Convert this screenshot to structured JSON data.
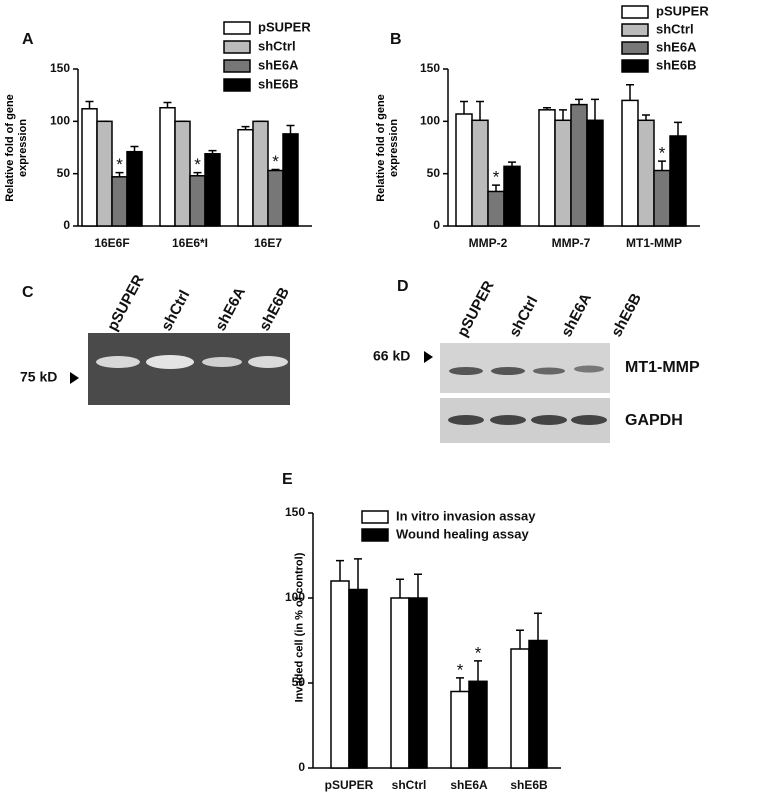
{
  "chart_data": [
    {
      "type": "bar",
      "panel": "A",
      "ylabel": "Relative fold of gene expression",
      "categories": [
        "16E6F",
        "16E6*I",
        "16E7"
      ],
      "series": [
        {
          "name": "pSUPER",
          "color": "#ffffff",
          "values": [
            112,
            113,
            92
          ],
          "errors": [
            7,
            5,
            3
          ]
        },
        {
          "name": "shCtrl",
          "color": "#bbbbbb",
          "values": [
            100,
            100,
            100
          ],
          "errors": [
            0,
            0,
            0
          ]
        },
        {
          "name": "shE6A",
          "color": "#777777",
          "values": [
            47,
            48,
            53
          ],
          "errors": [
            4,
            3,
            1
          ],
          "labels": [
            "*",
            "*",
            "*"
          ]
        },
        {
          "name": "shE6B",
          "color": "#000000",
          "values": [
            71,
            69,
            88
          ],
          "errors": [
            5,
            3,
            8
          ]
        }
      ],
      "ylim": [
        0,
        150
      ],
      "yticks": [
        0,
        50,
        100,
        150
      ]
    },
    {
      "type": "bar",
      "panel": "B",
      "ylabel": "Relative fold of gene expression",
      "categories": [
        "MMP-2",
        "MMP-7",
        "MT1-MMP"
      ],
      "series": [
        {
          "name": "pSUPER",
          "color": "#ffffff",
          "values": [
            107,
            111,
            120
          ],
          "errors": [
            12,
            2,
            15
          ]
        },
        {
          "name": "shCtrl",
          "color": "#bbbbbb",
          "values": [
            101,
            101,
            101
          ],
          "errors": [
            18,
            10,
            5
          ]
        },
        {
          "name": "shE6A",
          "color": "#777777",
          "values": [
            33,
            116,
            53
          ],
          "errors": [
            6,
            5,
            9
          ],
          "labels": [
            "*",
            null,
            "*"
          ]
        },
        {
          "name": "shE6B",
          "color": "#000000",
          "values": [
            57,
            101,
            86
          ],
          "errors": [
            4,
            20,
            13
          ]
        }
      ],
      "ylim": [
        0,
        150
      ],
      "yticks": [
        0,
        50,
        100,
        150
      ]
    },
    {
      "type": "bar",
      "panel": "E",
      "ylabel": "Invaded cell (in % of control)",
      "categories": [
        "pSUPER",
        "shCtrl",
        "shE6A",
        "shE6B"
      ],
      "series": [
        {
          "name": "In vitro invasion assay",
          "color": "#ffffff",
          "values": [
            110,
            100,
            45,
            70
          ],
          "errors": [
            12,
            11,
            8,
            11
          ],
          "labels": [
            null,
            null,
            "*",
            null
          ]
        },
        {
          "name": "Wound healing assay",
          "color": "#000000",
          "values": [
            105,
            100,
            51,
            75
          ],
          "errors": [
            18,
            14,
            12,
            16
          ],
          "labels": [
            null,
            null,
            "*",
            null
          ]
        }
      ],
      "ylim": [
        0,
        150
      ],
      "yticks": [
        0,
        50,
        100,
        150
      ]
    }
  ],
  "blots": [
    {
      "panel": "C",
      "lanes": [
        "pSUPER",
        "shCtrl",
        "shE6A",
        "shE6B"
      ],
      "marker": "75 kD"
    },
    {
      "panel": "D",
      "lanes": [
        "pSUPER",
        "shCtrl",
        "shE6A",
        "shE6B"
      ],
      "marker": "66 kD",
      "rows": [
        "MT1-MMP",
        "GAPDH"
      ]
    }
  ]
}
